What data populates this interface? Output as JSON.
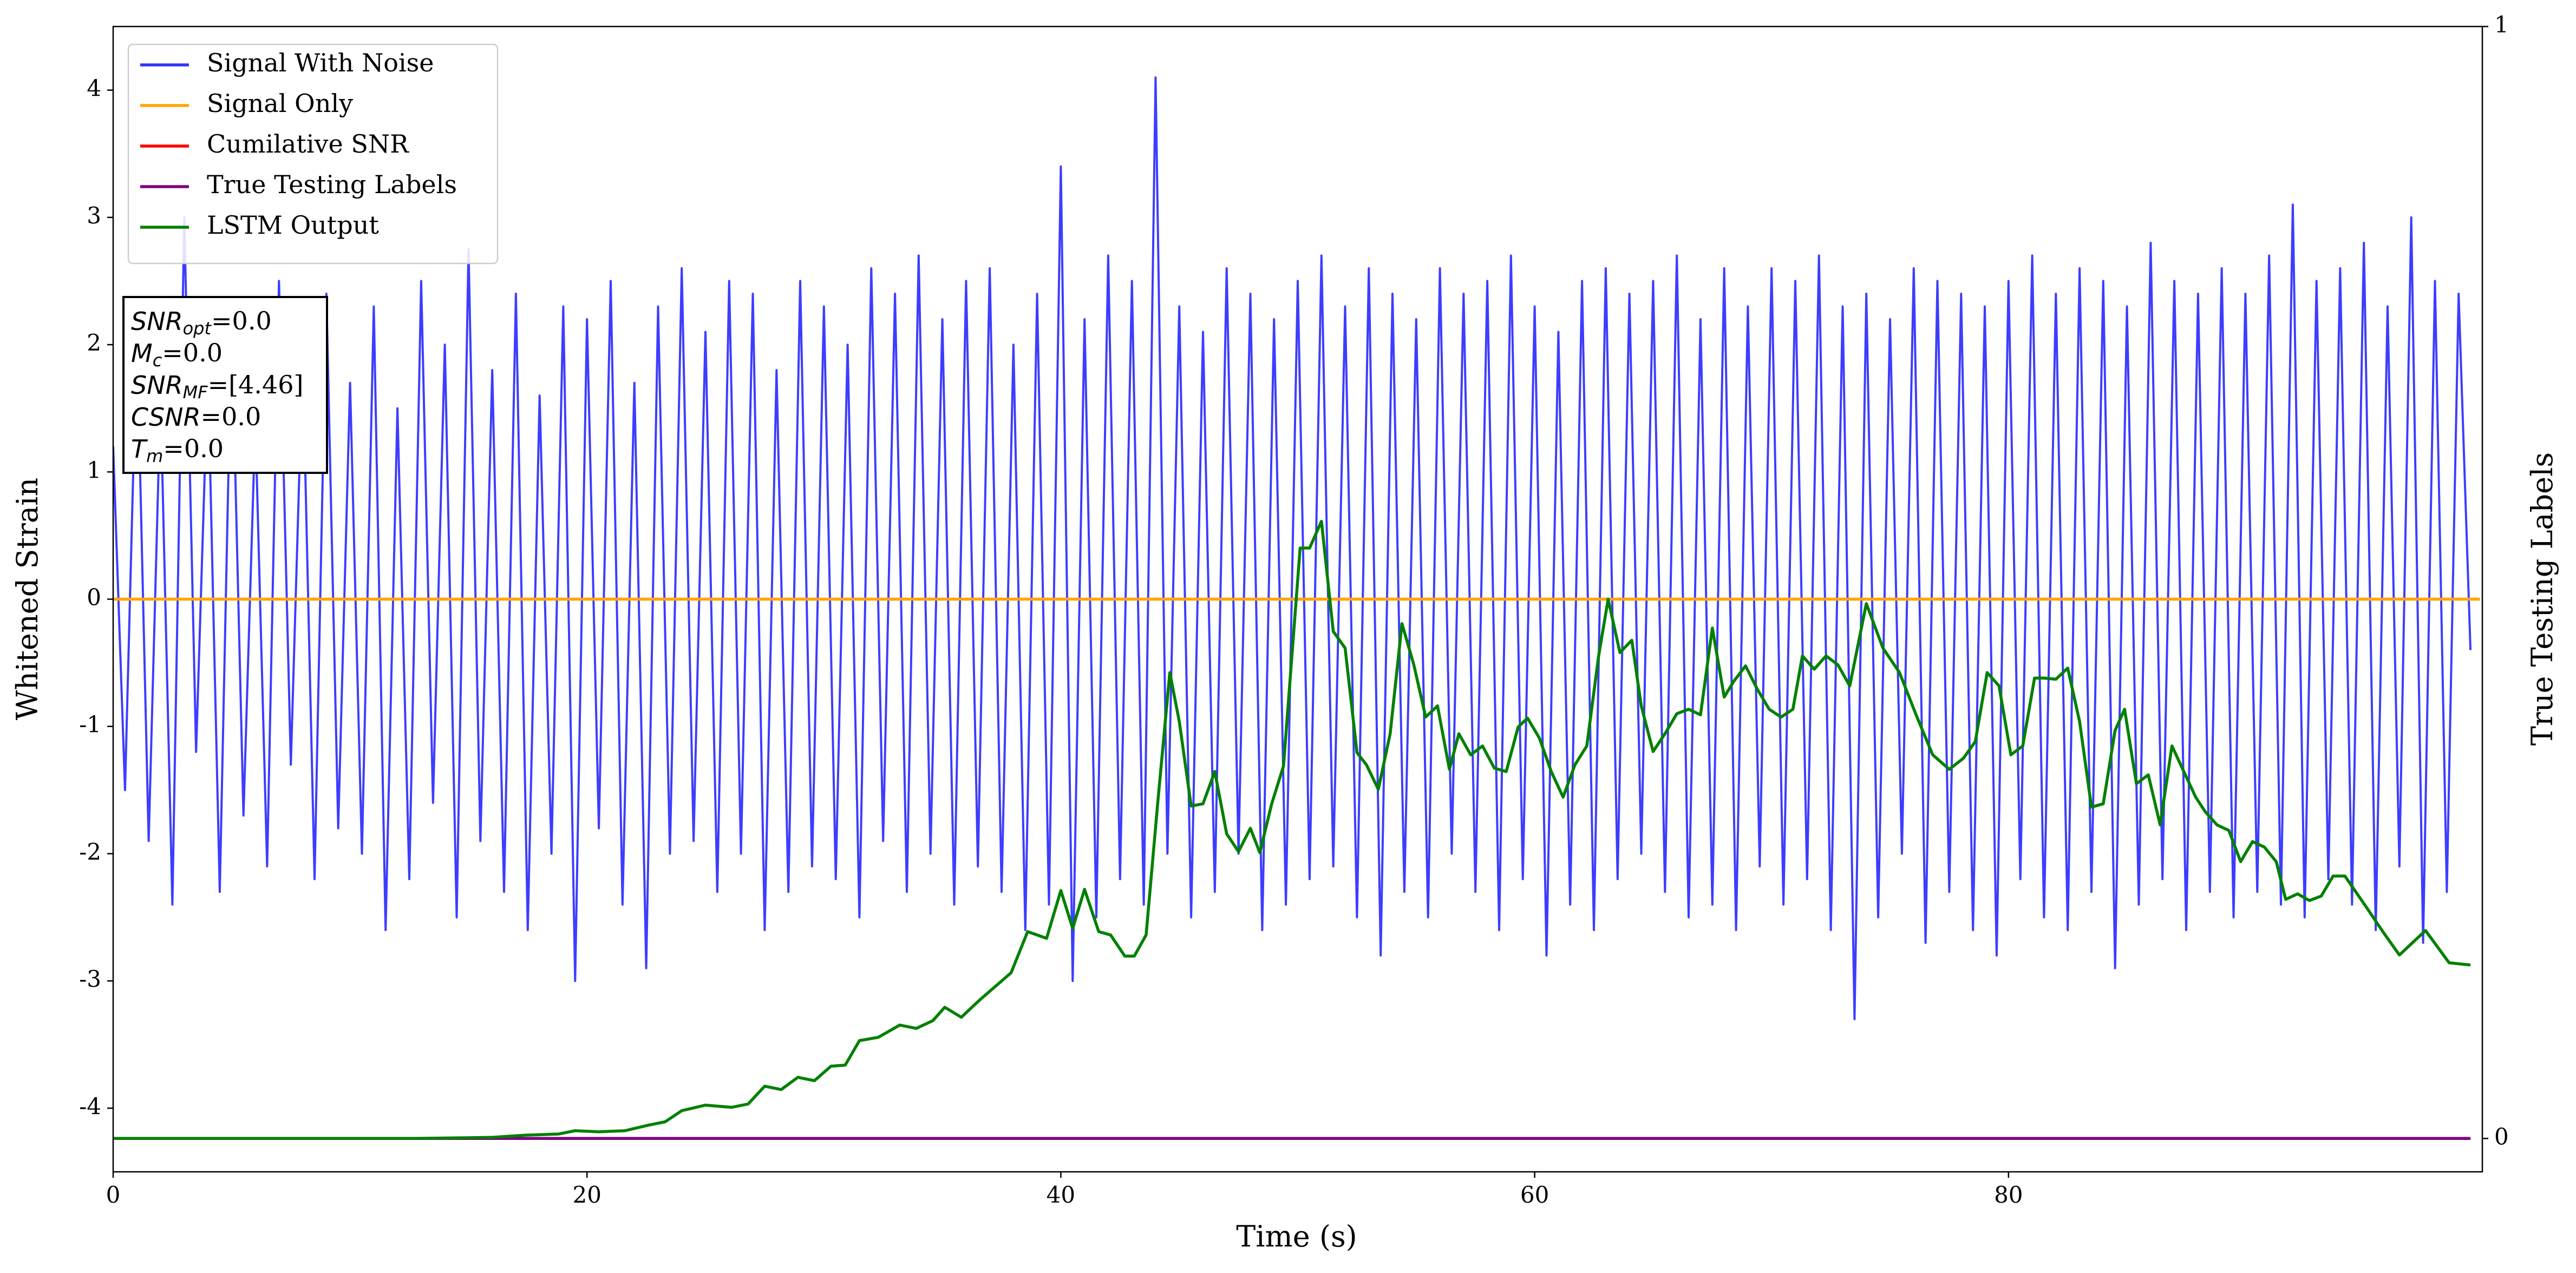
{
  "chart_data": {
    "type": "line",
    "xlabel": "Time (s)",
    "ylabel": "Whitened Strain",
    "y2label": "True Testing Labels",
    "xlim": [
      0,
      100
    ],
    "xticks": [
      0,
      20,
      40,
      60,
      80
    ],
    "ylim": [
      -4.5,
      4.5
    ],
    "yticks": [
      -4,
      -3,
      -2,
      -1,
      0,
      1,
      2,
      3,
      4
    ],
    "y2lim": [
      -0.03,
      1
    ],
    "y2ticks": [
      0,
      1
    ],
    "legend": "upper left",
    "series": [
      {
        "name": "Signal With Noise",
        "color": "#3333ff",
        "axis": "y",
        "x": [
          0,
          0.5,
          1,
          1.5,
          2,
          2.5,
          3,
          3.5,
          4,
          4.5,
          5,
          5.5,
          6,
          6.5,
          7,
          7.5,
          8,
          8.5,
          9,
          9.5,
          10,
          10.5,
          11,
          11.5,
          12,
          12.5,
          13,
          13.5,
          14,
          14.5,
          15,
          15.5,
          16,
          16.5,
          17,
          17.5,
          18,
          18.5,
          19,
          19.5,
          20,
          20.5,
          21,
          21.5,
          22,
          22.5,
          23,
          23.5,
          24,
          24.5,
          25,
          25.5,
          26,
          26.5,
          27,
          27.5,
          28,
          28.5,
          29,
          29.5,
          30,
          30.5,
          31,
          31.5,
          32,
          32.5,
          33,
          33.5,
          34,
          34.5,
          35,
          35.5,
          36,
          36.5,
          37,
          37.5,
          38,
          38.5,
          39,
          39.5,
          40,
          40.5,
          41,
          41.5,
          42,
          42.5,
          43,
          43.5,
          44,
          44.5,
          45,
          45.5,
          46,
          46.5,
          47,
          47.5,
          48,
          48.5,
          49,
          49.5,
          50,
          50.5,
          51,
          51.5,
          52,
          52.5,
          53,
          53.5,
          54,
          54.5,
          55,
          55.5,
          56,
          56.5,
          57,
          57.5,
          58,
          58.5,
          59,
          59.5,
          60,
          60.5,
          61,
          61.5,
          62,
          62.5,
          63,
          63.5,
          64,
          64.5,
          65,
          65.5,
          66,
          66.5,
          67,
          67.5,
          68,
          68.5,
          69,
          69.5,
          70,
          70.5,
          71,
          71.5,
          72,
          72.5,
          73,
          73.5,
          74,
          74.5,
          75,
          75.5,
          76,
          76.5,
          77,
          77.5,
          78,
          78.5,
          79,
          79.5,
          80,
          80.5,
          81,
          81.5,
          82,
          82.5,
          83,
          83.5,
          84,
          84.5,
          85,
          85.5,
          86,
          86.5,
          87,
          87.5,
          88,
          88.5,
          89,
          89.5,
          90,
          90.5,
          91,
          91.5,
          92,
          92.5,
          93,
          93.5,
          94,
          94.5,
          95,
          95.5,
          96,
          96.5,
          97,
          97.5,
          98,
          98.5,
          99,
          99.5
        ],
        "values": [
          1.2,
          -1.5,
          2.1,
          -1.9,
          1.6,
          -2.4,
          3.0,
          -1.2,
          1.8,
          -2.3,
          2.2,
          -1.7,
          1.4,
          -2.1,
          2.5,
          -1.3,
          1.9,
          -2.2,
          2.4,
          -1.8,
          1.7,
          -2.0,
          2.3,
          -2.6,
          1.5,
          -2.2,
          2.5,
          -1.6,
          2.0,
          -2.5,
          2.75,
          -1.9,
          1.8,
          -2.3,
          2.4,
          -2.6,
          1.6,
          -2.0,
          2.3,
          -3.0,
          2.2,
          -1.8,
          2.5,
          -2.4,
          1.7,
          -2.9,
          2.3,
          -2.0,
          2.6,
          -1.9,
          2.1,
          -2.3,
          2.5,
          -2.0,
          2.4,
          -2.6,
          1.8,
          -2.3,
          2.5,
          -2.1,
          2.3,
          -2.2,
          2.0,
          -2.5,
          2.6,
          -1.9,
          2.4,
          -2.3,
          2.7,
          -2.0,
          2.2,
          -2.4,
          2.5,
          -2.1,
          2.6,
          -2.3,
          2.0,
          -2.6,
          2.4,
          -2.4,
          3.4,
          -3.0,
          2.2,
          -2.5,
          2.7,
          -2.2,
          2.5,
          -2.4,
          4.1,
          -2.0,
          2.3,
          -2.5,
          2.1,
          -2.3,
          2.6,
          -2.0,
          2.4,
          -2.6,
          2.2,
          -2.4,
          2.5,
          -2.2,
          2.7,
          -2.1,
          2.3,
          -2.5,
          2.6,
          -2.8,
          2.4,
          -2.3,
          2.2,
          -2.5,
          2.6,
          -2.0,
          2.4,
          -2.3,
          2.5,
          -2.6,
          2.7,
          -2.2,
          2.3,
          -2.8,
          2.1,
          -2.4,
          2.5,
          -2.6,
          2.6,
          -2.2,
          2.4,
          -2.0,
          2.5,
          -2.3,
          2.7,
          -2.5,
          2.2,
          -2.4,
          2.6,
          -2.6,
          2.3,
          -2.1,
          2.6,
          -2.4,
          2.5,
          -2.2,
          2.7,
          -2.6,
          2.3,
          -3.3,
          2.4,
          -2.5,
          2.2,
          -2.0,
          2.6,
          -2.7,
          2.5,
          -2.3,
          2.4,
          -2.6,
          2.3,
          -2.8,
          2.5,
          -2.2,
          2.7,
          -2.5,
          2.4,
          -2.6,
          2.6,
          -2.3,
          2.5,
          -2.9,
          2.3,
          -2.4,
          2.8,
          -2.2,
          2.5,
          -2.6,
          2.4,
          -2.3,
          2.6,
          -2.5,
          2.4,
          -2.3,
          2.7,
          -2.4,
          3.1,
          -2.5,
          2.5,
          -2.2,
          2.6,
          -2.4,
          2.8,
          -2.6,
          2.3,
          -2.1,
          3.0,
          -2.7,
          2.5,
          -2.3,
          2.4,
          -0.4
        ]
      },
      {
        "name": "Signal Only",
        "color": "#ffa500",
        "axis": "y",
        "x": [
          0,
          99.9
        ],
        "values": [
          0,
          0
        ]
      },
      {
        "name": "Cumilative SNR",
        "color": "#ff0000",
        "axis": "y2",
        "x": [
          0,
          99.5
        ],
        "values": [
          0,
          0
        ]
      },
      {
        "name": "True Testing Labels",
        "color": "#800080",
        "axis": "y2",
        "x": [
          0,
          99.5
        ],
        "values": [
          0,
          0
        ]
      },
      {
        "name": "LSTM Output",
        "color": "#008000",
        "axis": "y2",
        "x": [
          0,
          12.8,
          16,
          17.4,
          18.8,
          19.5,
          20.5,
          21.6,
          22.6,
          23.3,
          24,
          25,
          26.1,
          26.8,
          27.5,
          28.2,
          28.9,
          29.6,
          30.3,
          30.9,
          31.5,
          32.3,
          33.2,
          33.9,
          34.6,
          35.1,
          35.8,
          36.6,
          37.9,
          38.6,
          39.4,
          40,
          40.5,
          41,
          41.6,
          42.1,
          42.7,
          43.1,
          43.6,
          44.1,
          44.6,
          45,
          45.5,
          46,
          46.5,
          47,
          47.5,
          48,
          48.4,
          48.9,
          49.4,
          50.1,
          50.5,
          51,
          51.5,
          52,
          52.5,
          52.9,
          53.4,
          53.9,
          54.4,
          54.9,
          55.4,
          55.9,
          56.4,
          56.8,
          57.3,
          57.8,
          58.3,
          58.8,
          59.3,
          59.7,
          60.2,
          60.7,
          61.2,
          61.7,
          62.2,
          62.7,
          63.1,
          63.6,
          64.1,
          64.5,
          65,
          65.5,
          66,
          66.5,
          67,
          67.5,
          68,
          68.4,
          68.9,
          69.4,
          69.9,
          70.4,
          70.9,
          71.3,
          71.8,
          72.3,
          72.8,
          73.3,
          74,
          74.7,
          75.4,
          76.1,
          76.8,
          77.5,
          78.1,
          78.6,
          79.1,
          79.6,
          80.1,
          80.6,
          81.1,
          81.5,
          82,
          82.5,
          83,
          83.5,
          84,
          84.5,
          84.9,
          85.4,
          85.9,
          86.4,
          86.9,
          87.4,
          87.9,
          88.3,
          88.8,
          89.3,
          89.8,
          90.3,
          90.8,
          91.3,
          91.7,
          92.2,
          92.7,
          93.2,
          93.7,
          94.2,
          95.2,
          95.8,
          96.5,
          97.6,
          98.6,
          99.5
        ],
        "values": [
          0,
          0,
          0.001,
          0.003,
          0.004,
          0.007,
          0.006,
          0.007,
          0.012,
          0.015,
          0.025,
          0.03,
          0.028,
          0.031,
          0.047,
          0.044,
          0.055,
          0.052,
          0.065,
          0.066,
          0.088,
          0.091,
          0.102,
          0.099,
          0.106,
          0.118,
          0.109,
          0.125,
          0.149,
          0.186,
          0.18,
          0.223,
          0.189,
          0.224,
          0.186,
          0.183,
          0.164,
          0.164,
          0.183,
          0.304,
          0.419,
          0.375,
          0.299,
          0.301,
          0.33,
          0.274,
          0.258,
          0.279,
          0.257,
          0.301,
          0.335,
          0.531,
          0.531,
          0.555,
          0.456,
          0.441,
          0.347,
          0.336,
          0.314,
          0.364,
          0.463,
          0.426,
          0.379,
          0.389,
          0.332,
          0.364,
          0.345,
          0.353,
          0.333,
          0.33,
          0.37,
          0.378,
          0.36,
          0.33,
          0.307,
          0.336,
          0.353,
          0.434,
          0.485,
          0.437,
          0.448,
          0.389,
          0.348,
          0.364,
          0.382,
          0.386,
          0.381,
          0.459,
          0.397,
          0.411,
          0.425,
          0.404,
          0.386,
          0.379,
          0.386,
          0.434,
          0.422,
          0.434,
          0.426,
          0.407,
          0.481,
          0.441,
          0.419,
          0.381,
          0.345,
          0.332,
          0.342,
          0.357,
          0.419,
          0.407,
          0.345,
          0.353,
          0.414,
          0.414,
          0.413,
          0.423,
          0.375,
          0.298,
          0.301,
          0.367,
          0.386,
          0.319,
          0.327,
          0.282,
          0.353,
          0.33,
          0.307,
          0.294,
          0.282,
          0.277,
          0.249,
          0.267,
          0.262,
          0.249,
          0.215,
          0.22,
          0.214,
          0.218,
          0.236,
          0.236,
          0.205,
          0.186,
          0.165,
          0.187,
          0.158,
          0.156
        ]
      }
    ],
    "annotations": [
      {
        "symbol": "SNR",
        "subscript": "opt",
        "text": "=0.0"
      },
      {
        "symbol": "M",
        "subscript": "c",
        "text": "=0.0"
      },
      {
        "symbol": "SNR",
        "subscript": "MF",
        "text": "=[4.46]"
      },
      {
        "symbol": "CSNR",
        "text": "=0.0"
      },
      {
        "symbol": "T",
        "subscript": "m",
        "text": "=0.0"
      }
    ]
  }
}
